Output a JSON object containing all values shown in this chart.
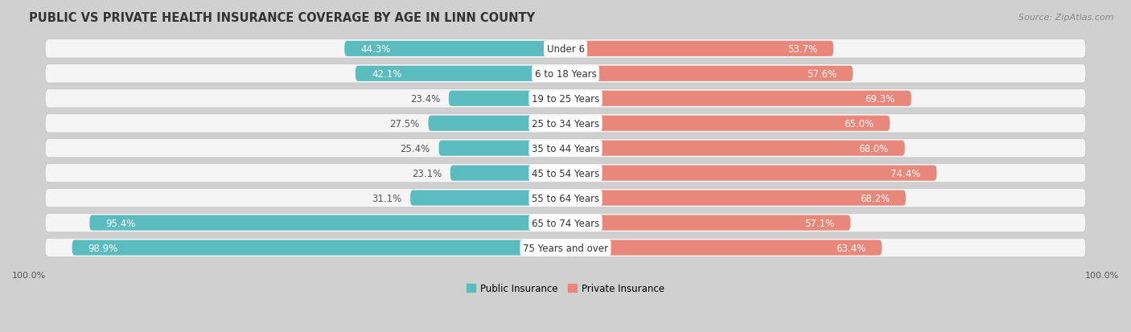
{
  "title": "PUBLIC VS PRIVATE HEALTH INSURANCE COVERAGE BY AGE IN LINN COUNTY",
  "source": "Source: ZipAtlas.com",
  "categories": [
    "Under 6",
    "6 to 18 Years",
    "19 to 25 Years",
    "25 to 34 Years",
    "35 to 44 Years",
    "45 to 54 Years",
    "55 to 64 Years",
    "65 to 74 Years",
    "75 Years and over"
  ],
  "public_values": [
    44.3,
    42.1,
    23.4,
    27.5,
    25.4,
    23.1,
    31.1,
    95.4,
    98.9
  ],
  "private_values": [
    53.7,
    57.6,
    69.3,
    65.0,
    68.0,
    74.4,
    68.2,
    57.1,
    63.4
  ],
  "public_color": "#5bbcbf",
  "private_color": "#e8877a",
  "background_color": "#d0d0d0",
  "row_bg_color": "#f5f5f5",
  "title_fontsize": 10.5,
  "source_fontsize": 8,
  "label_fontsize": 8.5,
  "cat_fontsize": 8.5,
  "legend_fontsize": 8.5,
  "axis_label_fontsize": 8,
  "value_label_color_light": "#ffffff",
  "value_label_color_dark": "#555555",
  "center_label_color": "#333333",
  "threshold_white_label": 35
}
